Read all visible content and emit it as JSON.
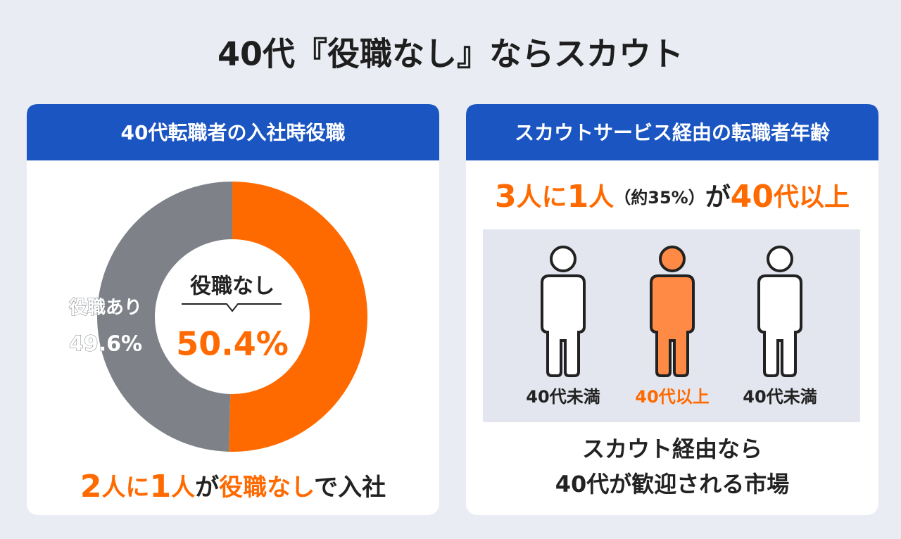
{
  "title": "40代『役職なし』ならスカウト",
  "chart_data": {
    "type": "pie",
    "title": "40代転職者の入社時役職",
    "categories": [
      "役職なし",
      "役職あり"
    ],
    "values": [
      50.4,
      49.6
    ],
    "value_labels": [
      "50.4%",
      "49.6%"
    ],
    "colors": [
      "#ff6a00",
      "#7e8288"
    ],
    "caption": [
      {
        "text": "2",
        "color": "#ff6a00"
      },
      {
        "text": "人に",
        "color": "#ff6a00"
      },
      {
        "text": "1",
        "color": "#ff6a00"
      },
      {
        "text": "人",
        "color": "#ff6a00"
      },
      {
        "text": "が",
        "color": "#222222"
      },
      {
        "text": "役職なし",
        "color": "#ff6a00"
      },
      {
        "text": "で入社",
        "color": "#222222"
      }
    ]
  },
  "right_panel": {
    "title": "スカウトサービス経由の転職者年齢",
    "headline": [
      {
        "text": "3",
        "color": "#ff6a00"
      },
      {
        "text": "人に",
        "color": "#ff6a00"
      },
      {
        "text": "1",
        "color": "#ff6a00"
      },
      {
        "text": "人",
        "color": "#ff6a00"
      },
      {
        "text": "（約35%）",
        "color": "#222222"
      },
      {
        "text": "が",
        "color": "#222222"
      },
      {
        "text": "40",
        "color": "#ff6a00"
      },
      {
        "text": "代以上",
        "color": "#ff6a00"
      }
    ],
    "figures": [
      {
        "label": "40代未満",
        "color": "#ffffff",
        "label_color": "#222222"
      },
      {
        "label": "40代以上",
        "color": "#ff8a45",
        "label_color": "#ff6a00"
      },
      {
        "label": "40代未満",
        "color": "#ffffff",
        "label_color": "#222222"
      }
    ],
    "footer": [
      "スカウト経由なら",
      "40代が歓迎される市場"
    ]
  }
}
